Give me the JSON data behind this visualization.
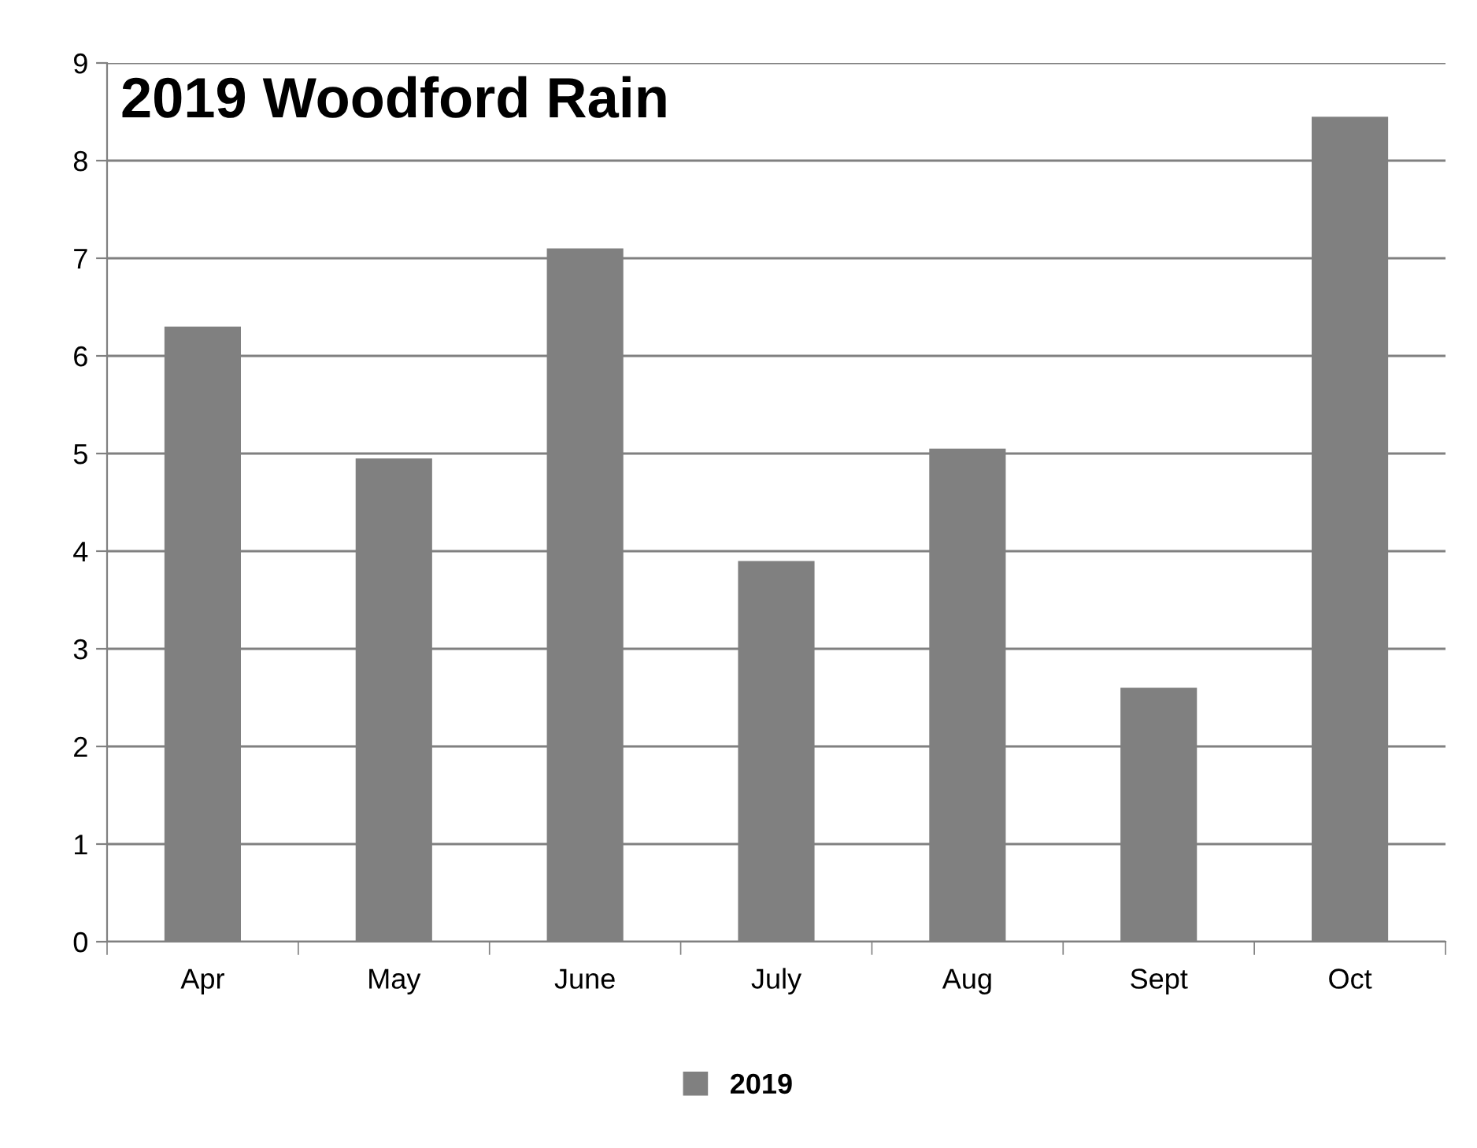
{
  "chart_data": {
    "type": "bar",
    "title": "2019 Woodford Rain",
    "categories": [
      "Apr",
      "May",
      "June",
      "July",
      "Aug",
      "Sept",
      "Oct"
    ],
    "series": [
      {
        "name": "2019",
        "color": "#808080",
        "values": [
          6.3,
          4.95,
          7.1,
          3.9,
          5.05,
          2.6,
          8.45
        ]
      }
    ],
    "ylim": [
      0,
      9
    ],
    "yticks": [
      0,
      1,
      2,
      3,
      4,
      5,
      6,
      7,
      8,
      9
    ],
    "grid": "y",
    "legend": "bottom"
  }
}
